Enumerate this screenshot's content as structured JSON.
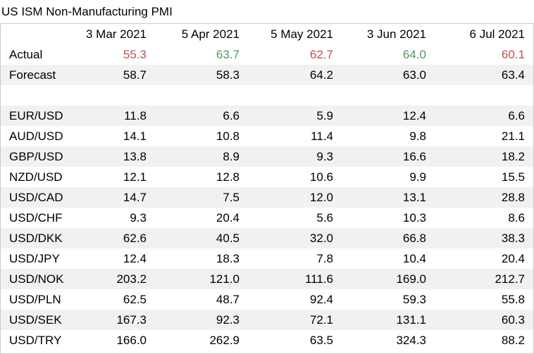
{
  "title": "US ISM Non-Manufacturing PMI",
  "colors": {
    "red": "#c0504d",
    "green": "#4e9a5e",
    "stripe": "#f1f1f1",
    "border": "#c8c8c8"
  },
  "header": [
    "3 Mar 2021",
    "5 Apr 2021",
    "5 May 2021",
    "3 Jun 2021",
    "6 Jul 2021"
  ],
  "actual": {
    "label": "Actual",
    "values": [
      "55.3",
      "63.7",
      "62.7",
      "64.0",
      "60.1"
    ],
    "colors": [
      "red",
      "green",
      "red",
      "green",
      "red"
    ]
  },
  "forecast": {
    "label": "Forecast",
    "values": [
      "58.7",
      "58.3",
      "64.2",
      "63.0",
      "63.4"
    ]
  },
  "pairs": [
    {
      "label": "EUR/USD",
      "values": [
        "11.8",
        "6.6",
        "5.9",
        "12.4",
        "6.6"
      ]
    },
    {
      "label": "AUD/USD",
      "values": [
        "14.1",
        "10.8",
        "11.4",
        "9.8",
        "21.1"
      ]
    },
    {
      "label": "GBP/USD",
      "values": [
        "13.8",
        "8.9",
        "9.3",
        "16.6",
        "18.2"
      ]
    },
    {
      "label": "NZD/USD",
      "values": [
        "12.1",
        "12.8",
        "10.6",
        "9.9",
        "15.5"
      ]
    },
    {
      "label": "USD/CAD",
      "values": [
        "14.7",
        "7.5",
        "12.0",
        "13.1",
        "28.8"
      ]
    },
    {
      "label": "USD/CHF",
      "values": [
        "9.3",
        "20.4",
        "5.6",
        "10.3",
        "8.6"
      ]
    },
    {
      "label": "USD/DKK",
      "values": [
        "62.6",
        "40.5",
        "32.0",
        "66.8",
        "38.3"
      ]
    },
    {
      "label": "USD/JPY",
      "values": [
        "12.4",
        "18.3",
        "7.8",
        "10.4",
        "20.4"
      ]
    },
    {
      "label": "USD/NOK",
      "values": [
        "203.2",
        "121.0",
        "111.6",
        "169.0",
        "212.7"
      ]
    },
    {
      "label": "USD/PLN",
      "values": [
        "62.5",
        "48.7",
        "92.4",
        "59.3",
        "55.8"
      ]
    },
    {
      "label": "USD/SEK",
      "values": [
        "167.3",
        "92.3",
        "72.1",
        "131.1",
        "60.3"
      ]
    },
    {
      "label": "USD/TRY",
      "values": [
        "166.0",
        "262.9",
        "63.5",
        "324.3",
        "88.2"
      ]
    }
  ]
}
